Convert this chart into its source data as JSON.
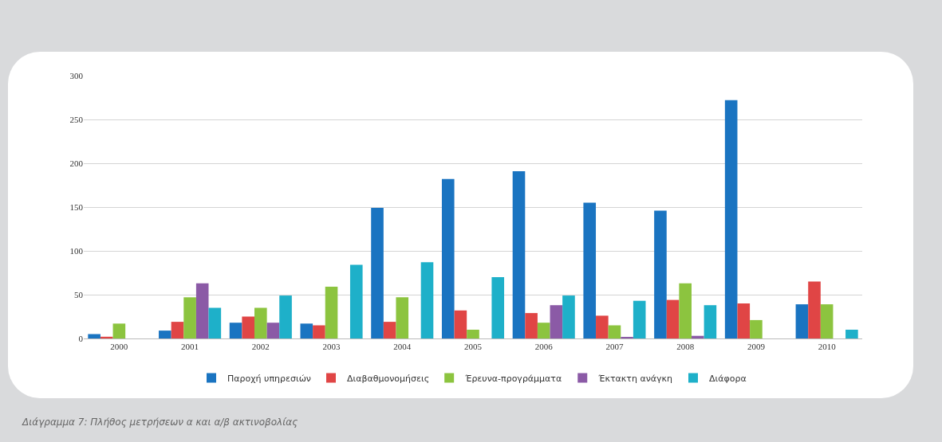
{
  "chart_data": {
    "type": "bar",
    "categories": [
      "2000",
      "2001",
      "2002",
      "2003",
      "2004",
      "2005",
      "2006",
      "2007",
      "2008",
      "2009",
      "2010"
    ],
    "series": [
      {
        "name": "Παροχή υπηρεσιών",
        "color": "#1a74c1",
        "values": [
          5,
          9,
          18,
          17,
          149,
          182,
          191,
          155,
          146,
          272,
          39
        ]
      },
      {
        "name": "Διαβαθμονομήσεις",
        "color": "#e04545",
        "values": [
          2,
          19,
          25,
          15,
          19,
          32,
          29,
          26,
          44,
          40,
          65
        ]
      },
      {
        "name": "Έρευνα-προγράμματα",
        "color": "#8cc43f",
        "values": [
          17,
          47,
          35,
          59,
          47,
          10,
          18,
          15,
          63,
          21,
          39
        ]
      },
      {
        "name": "Έκτακτη ανάγκη",
        "color": "#8b5aa6",
        "values": [
          0,
          63,
          18,
          0,
          0,
          0,
          38,
          1,
          3,
          0,
          0
        ]
      },
      {
        "name": "Διάφορα",
        "color": "#1eb0c9",
        "values": [
          0,
          35,
          49,
          84,
          87,
          70,
          49,
          43,
          38,
          0,
          10
        ]
      }
    ],
    "ylim": [
      0,
      300
    ],
    "yticks": [
      0,
      50,
      100,
      150,
      200,
      250,
      300
    ],
    "grid": "y",
    "legend": "bottom",
    "annotations": [
      "Διάγραμμα 7: Πλήθος μετρήσεων α και α/β ακτινοβολίας"
    ]
  }
}
